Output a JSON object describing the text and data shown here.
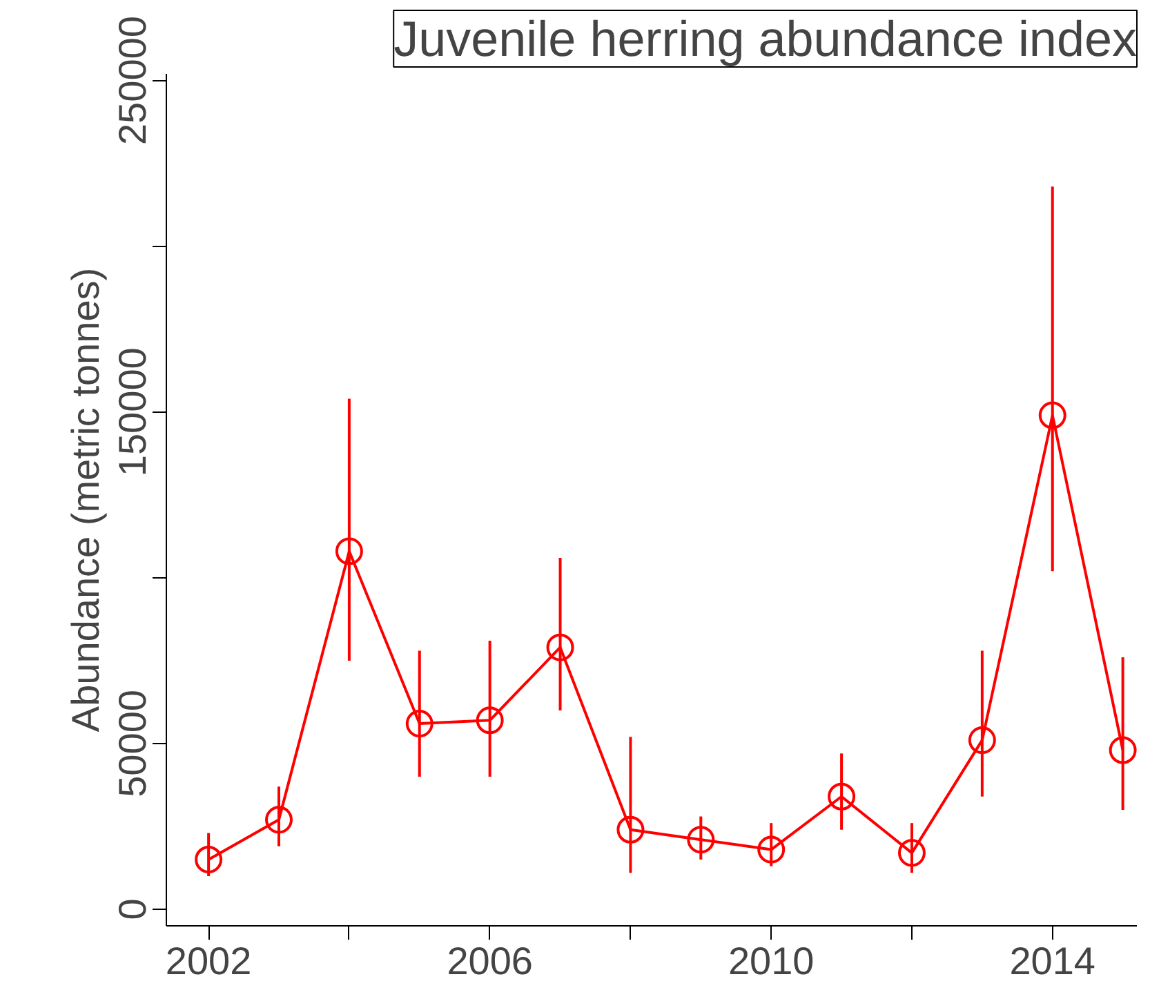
{
  "chart_data": {
    "type": "line",
    "title": "Juvenile herring abundance index",
    "ylabel": "Abundance (metric tonnes)",
    "x": [
      2002,
      2003,
      2004,
      2005,
      2006,
      2007,
      2008,
      2009,
      2010,
      2011,
      2012,
      2013,
      2014,
      2015
    ],
    "series": [
      {
        "color": "#ff0000",
        "values": [
          15000,
          27000,
          108000,
          56000,
          57000,
          79000,
          24000,
          21000,
          18000,
          34000,
          17000,
          51000,
          149000,
          48000
        ],
        "errors": [
          [
            10000,
            23000
          ],
          [
            19000,
            37000
          ],
          [
            75000,
            154000
          ],
          [
            40000,
            78000
          ],
          [
            40000,
            81000
          ],
          [
            60000,
            106000
          ],
          [
            11000,
            52000
          ],
          [
            15000,
            28000
          ],
          [
            13000,
            26000
          ],
          [
            24000,
            47000
          ],
          [
            11000,
            26000
          ],
          [
            34000,
            78000
          ],
          [
            102000,
            218000
          ],
          [
            30000,
            76000
          ]
        ]
      }
    ],
    "xlim": [
      2001.4,
      2015.2
    ],
    "ylim": [
      -5000,
      252000
    ],
    "xticks": [
      2002,
      {
        "value": 2004,
        "label": null
      },
      2006,
      {
        "value": 2008,
        "label": null
      },
      2010,
      {
        "value": 2012,
        "label": null
      },
      2014
    ],
    "yticks": [
      0,
      50000,
      {
        "value": 100000,
        "label": null
      },
      150000,
      {
        "value": 200000,
        "label": null
      },
      250000
    ],
    "marker": "circle",
    "line_style": "solid",
    "grid": false
  }
}
